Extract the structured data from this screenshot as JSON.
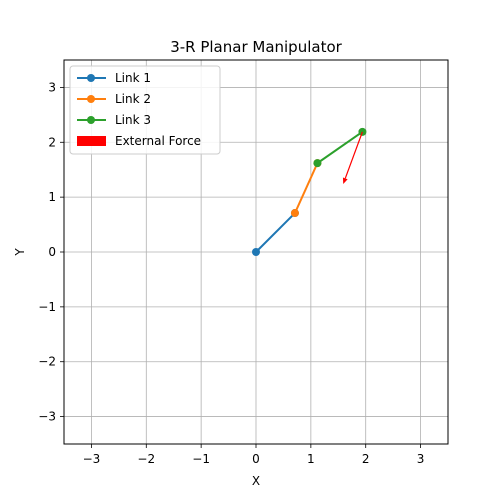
{
  "chart_data": {
    "type": "line",
    "title": "3-R Planar Manipulator",
    "xlabel": "X",
    "ylabel": "Y",
    "xlim": [
      -3.5,
      3.5
    ],
    "ylim": [
      -3.5,
      3.5
    ],
    "xticks": [
      -3,
      -2,
      -1,
      0,
      1,
      2,
      3
    ],
    "yticks": [
      -3,
      -2,
      -1,
      0,
      1,
      2,
      3
    ],
    "xtick_labels": [
      "−3",
      "−2",
      "−1",
      "0",
      "1",
      "2",
      "3"
    ],
    "ytick_labels": [
      "−3",
      "−2",
      "−1",
      "0",
      "1",
      "2",
      "3"
    ],
    "grid": true,
    "legend_position": "top-left",
    "series": [
      {
        "name": "Link 1",
        "color": "#1f77b4",
        "x": [
          0,
          0.71
        ],
        "y": [
          0,
          0.71
        ],
        "marker": "circle"
      },
      {
        "name": "Link 2",
        "color": "#ff7f0e",
        "x": [
          0.71,
          1.12
        ],
        "y": [
          0.71,
          1.62
        ],
        "marker": "circle"
      },
      {
        "name": "Link 3",
        "color": "#2ca02c",
        "x": [
          1.12,
          1.94
        ],
        "y": [
          1.62,
          2.19
        ],
        "marker": "circle"
      }
    ],
    "force": {
      "name": "External Force",
      "color": "#ff0000",
      "origin": [
        1.94,
        2.19
      ],
      "vector": [
        -0.35,
        -0.95
      ]
    }
  }
}
